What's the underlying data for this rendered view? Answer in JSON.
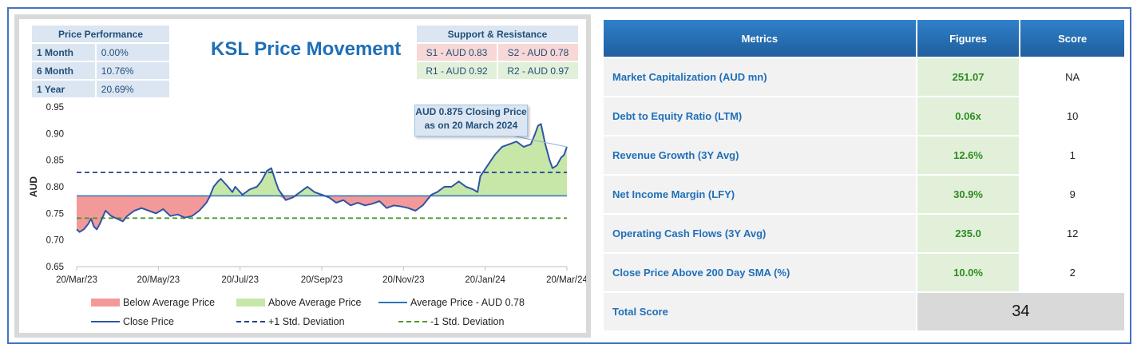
{
  "chart": {
    "title": "KSL Price Movement",
    "price_performance": {
      "header": "Price Performance",
      "rows": [
        {
          "label": "1 Month",
          "value": "0.00%"
        },
        {
          "label": "6 Month",
          "value": "10.76%"
        },
        {
          "label": "1 Year",
          "value": "20.69%"
        }
      ]
    },
    "support_resistance": {
      "header": "Support & Resistance",
      "s1": "S1 - AUD 0.83",
      "s2": "S2 - AUD 0.78",
      "r1": "R1 - AUD 0.92",
      "r2": "R2 - AUD 0.97"
    },
    "callout_line1": "AUD 0.875 Closing Price",
    "callout_line2": "as on  20 March 2024",
    "legend": {
      "below": "Below Average Price",
      "above": "Above Average Price",
      "avg": "Average Price - AUD 0.78",
      "close": "Close Price",
      "plus_sd": "+1 Std. Deviation",
      "minus_sd": "-1 Std. Deviation"
    },
    "colors": {
      "below": "#f4999a",
      "above": "#c6e7a8",
      "close": "#2f55a4",
      "avg": "#2e75b6",
      "plus_sd": "#1f3f8f",
      "minus_sd": "#4e9a2a"
    }
  },
  "chart_data": {
    "type": "line",
    "ylabel": "AUD",
    "ylim": [
      0.65,
      0.95
    ],
    "y_ticks": [
      "0.65",
      "0.70",
      "0.75",
      "0.80",
      "0.85",
      "0.90",
      "0.95"
    ],
    "x_ticks": [
      "20/Mar/23",
      "20/May/23",
      "20/Jul/23",
      "20/Sep/23",
      "20/Nov/23",
      "20/Jan/24",
      "20/Mar/24"
    ],
    "average": 0.783,
    "plus_sd": 0.827,
    "minus_sd": 0.741,
    "close_price_points": [
      [
        0,
        0.72
      ],
      [
        2,
        0.715
      ],
      [
        5,
        0.72
      ],
      [
        8,
        0.73
      ],
      [
        10,
        0.74
      ],
      [
        12,
        0.725
      ],
      [
        14,
        0.72
      ],
      [
        16,
        0.73
      ],
      [
        20,
        0.755
      ],
      [
        24,
        0.745
      ],
      [
        28,
        0.74
      ],
      [
        32,
        0.735
      ],
      [
        35,
        0.745
      ],
      [
        40,
        0.755
      ],
      [
        45,
        0.76
      ],
      [
        50,
        0.755
      ],
      [
        55,
        0.75
      ],
      [
        60,
        0.758
      ],
      [
        65,
        0.745
      ],
      [
        70,
        0.748
      ],
      [
        75,
        0.742
      ],
      [
        80,
        0.745
      ],
      [
        85,
        0.755
      ],
      [
        90,
        0.77
      ],
      [
        92,
        0.78
      ],
      [
        95,
        0.8
      ],
      [
        98,
        0.81
      ],
      [
        100,
        0.815
      ],
      [
        105,
        0.8
      ],
      [
        108,
        0.79
      ],
      [
        110,
        0.8
      ],
      [
        115,
        0.785
      ],
      [
        120,
        0.795
      ],
      [
        125,
        0.8
      ],
      [
        128,
        0.81
      ],
      [
        132,
        0.83
      ],
      [
        135,
        0.835
      ],
      [
        138,
        0.81
      ],
      [
        140,
        0.795
      ],
      [
        145,
        0.775
      ],
      [
        150,
        0.78
      ],
      [
        155,
        0.79
      ],
      [
        160,
        0.8
      ],
      [
        165,
        0.79
      ],
      [
        170,
        0.785
      ],
      [
        175,
        0.78
      ],
      [
        180,
        0.77
      ],
      [
        185,
        0.775
      ],
      [
        190,
        0.765
      ],
      [
        195,
        0.77
      ],
      [
        200,
        0.765
      ],
      [
        205,
        0.768
      ],
      [
        210,
        0.773
      ],
      [
        215,
        0.76
      ],
      [
        220,
        0.765
      ],
      [
        225,
        0.763
      ],
      [
        230,
        0.76
      ],
      [
        235,
        0.755
      ],
      [
        240,
        0.765
      ],
      [
        243,
        0.775
      ],
      [
        246,
        0.785
      ],
      [
        250,
        0.79
      ],
      [
        255,
        0.8
      ],
      [
        260,
        0.8
      ],
      [
        265,
        0.81
      ],
      [
        270,
        0.8
      ],
      [
        275,
        0.795
      ],
      [
        278,
        0.79
      ],
      [
        280,
        0.82
      ],
      [
        285,
        0.84
      ],
      [
        290,
        0.86
      ],
      [
        295,
        0.875
      ],
      [
        300,
        0.88
      ],
      [
        305,
        0.885
      ],
      [
        310,
        0.875
      ],
      [
        315,
        0.88
      ],
      [
        318,
        0.9
      ],
      [
        320,
        0.915
      ],
      [
        322,
        0.918
      ],
      [
        325,
        0.88
      ],
      [
        328,
        0.85
      ],
      [
        330,
        0.835
      ],
      [
        333,
        0.84
      ],
      [
        336,
        0.855
      ],
      [
        338,
        0.86
      ],
      [
        340,
        0.875
      ]
    ]
  },
  "metrics": {
    "headers": [
      "Metrics",
      "Figures",
      "Score"
    ],
    "rows": [
      {
        "name": "Market Capitalization (AUD mn)",
        "figure": "251.07",
        "score": "NA"
      },
      {
        "name": "Debt to Equity Ratio (LTM)",
        "figure": "0.06x",
        "score": "10"
      },
      {
        "name": "Revenue Growth (3Y Avg)",
        "figure": "12.6%",
        "score": "1"
      },
      {
        "name": "Net Income Margin (LFY)",
        "figure": "30.9%",
        "score": "9"
      },
      {
        "name": "Operating Cash Flows (3Y Avg)",
        "figure": "235.0",
        "score": "12"
      },
      {
        "name": "Close Price Above 200 Day SMA (%)",
        "figure": "10.0%",
        "score": "2"
      }
    ],
    "total_label": "Total Score",
    "total_value": "34"
  }
}
